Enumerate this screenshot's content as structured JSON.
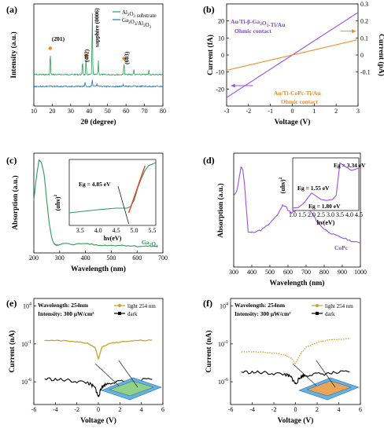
{
  "chart_data": [
    {
      "id": "a",
      "panel_label": "(a)",
      "type": "line",
      "xlabel": "2θ (degree)",
      "ylabel": "Intensity (a.u.)",
      "xlim": [
        10,
        80
      ],
      "xticks": [
        10,
        20,
        30,
        40,
        50,
        60,
        70,
        80
      ],
      "legend": [
        "Al2O3 substrate",
        "Ga2O3/Al2O3"
      ],
      "legend_position": "top-right",
      "series_colors": [
        "#2e9b57",
        "#1f77d0"
      ],
      "peaks_top": [
        {
          "x": 18.9,
          "y": 0.36
        },
        {
          "x": 36.4,
          "y": 0.22
        },
        {
          "x": 38.3,
          "y": 0.25
        },
        {
          "x": 41.7,
          "y": 1.0
        },
        {
          "x": 45.0,
          "y": 0.22
        },
        {
          "x": 58.9,
          "y": 0.2
        },
        {
          "x": 64.2,
          "y": 0.08
        },
        {
          "x": 72.4,
          "y": 0.08
        }
      ],
      "peaks_bottom": [
        {
          "x": 37.8,
          "y": 0.1
        },
        {
          "x": 41.7,
          "y": 0.14
        },
        {
          "x": 44.2,
          "y": 0.05
        },
        {
          "x": 58.5,
          "y": 0.05
        }
      ],
      "annotations": [
        "(2̄01)",
        "(4̄02)",
        "sapphire (0006)",
        "(6̄03)"
      ],
      "markers_x": [
        18.9,
        38.3,
        58.9
      ],
      "marker_color": "#f08a24"
    },
    {
      "id": "b",
      "panel_label": "(b)",
      "type": "line",
      "xlabel": "Voltage (V)",
      "ylabel_left": "Current (fA)",
      "ylabel_right": "Current (pA)",
      "xlim": [
        -3,
        3
      ],
      "ylim_left": [
        -30,
        30
      ],
      "ylim_right": [
        -0.3,
        0.3
      ],
      "xticks": [
        -3,
        -2,
        -1,
        0,
        1,
        2,
        3
      ],
      "yticks_left": [
        -20,
        -10,
        0,
        10,
        20
      ],
      "yticks_right": [
        -0.1,
        0,
        0.1,
        0.2,
        0.3
      ],
      "series": [
        {
          "x": [
            -3,
            3
          ],
          "y": [
            -25,
            25
          ],
          "axis": "left",
          "color": "#9b4fe0"
        },
        {
          "x": [
            -3,
            3
          ],
          "y": [
            -0.09,
            0.09
          ],
          "axis": "right",
          "color": "#f08a24"
        }
      ],
      "annotations": [
        {
          "text": "Au/Ti-β-Ga2O3-Ti/Au",
          "color": "#8a3fd6"
        },
        {
          "text": "Ohmic contact",
          "color": "#8a3fd6"
        },
        {
          "text": "Au/Ti-CoPc-Ti/Au",
          "color": "#f08a24"
        },
        {
          "text": "Ohmic contact",
          "color": "#f08a24"
        }
      ]
    },
    {
      "id": "c",
      "panel_label": "(c)",
      "type": "line",
      "xlabel": "Wavelength (nm)",
      "ylabel": "Absorption (a.u.)",
      "xlim": [
        200,
        700
      ],
      "xticks": [
        200,
        300,
        400,
        500,
        600,
        700
      ],
      "series": [
        {
          "color": "#2e9b57",
          "x": [
            200,
            210,
            220,
            230,
            240,
            250,
            260,
            270,
            280,
            290,
            300,
            320,
            350,
            400,
            450,
            500,
            550,
            600,
            650,
            680
          ],
          "y": [
            0.55,
            0.8,
            0.98,
            0.95,
            0.82,
            0.55,
            0.3,
            0.15,
            0.09,
            0.08,
            0.09,
            0.1,
            0.09,
            0.1,
            0.08,
            0.08,
            0.08,
            0.07,
            0.07,
            0.07
          ]
        }
      ],
      "series_label": "Ga2O3",
      "inset": {
        "xlabel": "hν(eV)",
        "ylabel": "(αhν)²",
        "xlim": [
          3.2,
          5.6
        ],
        "xticks": [
          3.5,
          4.0,
          4.5,
          5.0,
          5.5
        ],
        "annotation": "Eg = 4.85 eV",
        "x": [
          3.2,
          3.6,
          4.0,
          4.5,
          4.8,
          4.9,
          5.0,
          5.1,
          5.2,
          5.3,
          5.4,
          5.5,
          5.6
        ],
        "y": [
          0.68,
          0.69,
          0.7,
          0.71,
          0.71,
          0.72,
          0.76,
          0.84,
          0.9,
          0.95,
          0.98,
          0.99,
          1.0
        ],
        "fit_line": {
          "x": [
            4.85,
            5.3
          ],
          "y": [
            0.68,
            0.98
          ]
        }
      }
    },
    {
      "id": "d",
      "panel_label": "(d)",
      "type": "line",
      "xlabel": "Wavelength (nm)",
      "ylabel": "Absorption (a.u.)",
      "xlim": [
        300,
        1000
      ],
      "xticks": [
        300,
        400,
        500,
        600,
        700,
        800,
        900,
        1000
      ],
      "series": [
        {
          "color": "#9b4fe0",
          "x": [
            300,
            320,
            340,
            350,
            360,
            380,
            400,
            450,
            500,
            550,
            570,
            590,
            600,
            620,
            640,
            660,
            680,
            700,
            720,
            740,
            760,
            800,
            850,
            900,
            950,
            1000
          ],
          "y": [
            0.65,
            0.72,
            0.92,
            0.9,
            0.76,
            0.32,
            0.32,
            0.34,
            0.4,
            0.5,
            0.57,
            0.56,
            0.52,
            0.5,
            0.52,
            0.56,
            0.6,
            0.58,
            0.52,
            0.48,
            0.42,
            0.35,
            0.3,
            0.27,
            0.24,
            0.22
          ]
        }
      ],
      "series_label": "CoPc",
      "inset": {
        "xlabel": "hν(eV)",
        "ylabel": "(αhν)²",
        "xlim": [
          1.0,
          4.5
        ],
        "xticks": [
          1.0,
          1.5,
          2.0,
          2.5,
          3.0,
          3.5,
          4.0,
          4.5
        ],
        "annotations": [
          "Eg = 3.34 eV",
          "Eg = 1.55 eV",
          "Eg = 1.80 eV"
        ],
        "x": [
          1.0,
          1.3,
          1.6,
          1.8,
          2.0,
          2.2,
          2.5,
          2.8,
          3.1,
          3.3,
          3.4,
          3.5,
          3.7,
          3.9,
          4.1,
          4.3,
          4.5
        ],
        "y": [
          0.05,
          0.06,
          0.15,
          0.25,
          0.35,
          0.3,
          0.22,
          0.2,
          0.22,
          0.3,
          0.62,
          0.95,
          0.9,
          0.85,
          0.8,
          0.82,
          0.85
        ]
      }
    },
    {
      "id": "e",
      "panel_label": "(e)",
      "type": "line",
      "xlabel": "Voltage (V)",
      "ylabel": "Current (nA)",
      "xlim": [
        -6,
        6
      ],
      "xticks": [
        -6,
        -4,
        -2,
        0,
        2,
        4,
        6
      ],
      "yscale": "log",
      "ylim": [
        1e-09,
        100000.0
      ],
      "yticks": [
        "10^4",
        "10^-1",
        "10^-6"
      ],
      "info": [
        "Wavelength: 254nm",
        "Intensity: 300 μW/cm²"
      ],
      "legend": [
        "light 254 nm",
        "dark"
      ],
      "legend_position": "top-right",
      "series": [
        {
          "name": "light 254 nm",
          "color": "#c9a227",
          "x": [
            -5,
            -3,
            -1,
            -0.3,
            0,
            0.3,
            1,
            3,
            5
          ],
          "y_log10": [
            -0.5,
            -0.6,
            -0.9,
            -1.5,
            -3.0,
            -1.5,
            -0.9,
            -0.6,
            -0.5
          ]
        },
        {
          "name": "dark",
          "color": "#000000",
          "x": [
            -5,
            -3,
            -1,
            -0.3,
            0,
            0.3,
            1,
            3,
            5
          ],
          "y_log10": [
            -5.6,
            -5.8,
            -6.1,
            -6.8,
            -8.0,
            -6.7,
            -6.1,
            -5.9,
            -5.7
          ]
        }
      ]
    },
    {
      "id": "f",
      "panel_label": "(f)",
      "type": "line",
      "xlabel": "Voltage (V)",
      "ylabel": "Current (nA)",
      "xlim": [
        -6,
        6
      ],
      "xticks": [
        -6,
        -4,
        -2,
        0,
        2,
        4,
        6
      ],
      "yscale": "log",
      "ylim": [
        1e-09,
        100000.0
      ],
      "yticks": [
        "10^4",
        "10^-1",
        "10^-6"
      ],
      "info": [
        "Wavelength: 254nm",
        "Intensity: 300 μW/cm²"
      ],
      "legend": [
        "light 254 nm",
        "dark"
      ],
      "legend_position": "top-right",
      "series": [
        {
          "name": "light 254 nm",
          "color": "#c9a227",
          "x": [
            -5,
            -3,
            -1,
            -0.4,
            0,
            0.5,
            1,
            2,
            3,
            5
          ],
          "y_log10": [
            -2.0,
            -2.1,
            -2.4,
            -2.9,
            -3.6,
            -2.2,
            -1.4,
            -0.8,
            -0.5,
            -0.3
          ]
        },
        {
          "name": "dark",
          "color": "#000000",
          "x": [
            -5,
            -3,
            -1,
            -0.4,
            0,
            0.5,
            1,
            3,
            5
          ],
          "y_log10": [
            -4.7,
            -4.8,
            -5.0,
            -5.4,
            -6.3,
            -5.3,
            -5.1,
            -4.9,
            -4.7
          ]
        }
      ]
    }
  ]
}
